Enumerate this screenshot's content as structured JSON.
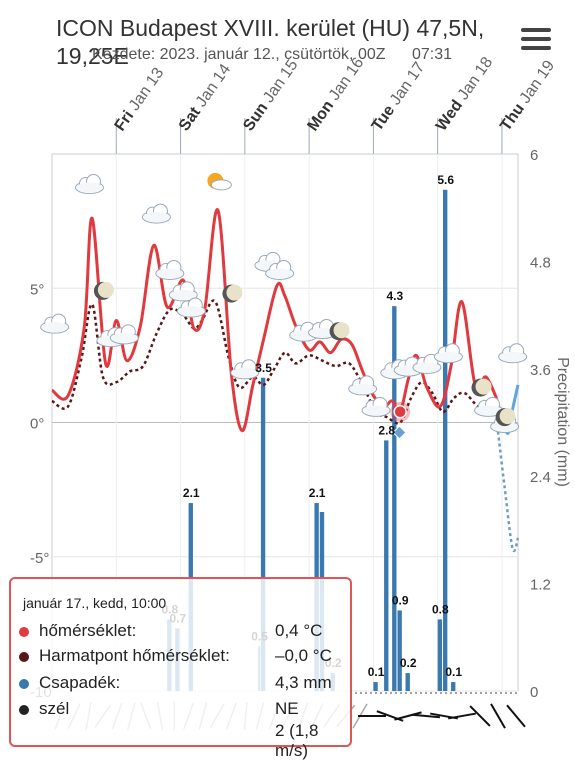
{
  "header": {
    "title": "ICON Budapest XVIII. kerület (HU) 47,5N, 19,25E",
    "subtitle": "Kezdete: 2023. január 12., csütörtök, 00Z",
    "time": "07:31"
  },
  "chart_data": {
    "type": "line",
    "x_days": [
      {
        "weekday": "Fri",
        "date": "Jan 13"
      },
      {
        "weekday": "Sat",
        "date": "Jan 14"
      },
      {
        "weekday": "Sun",
        "date": "Jan 15"
      },
      {
        "weekday": "Mon",
        "date": "Jan 16"
      },
      {
        "weekday": "Tue",
        "date": "Jan 17"
      },
      {
        "weekday": "Wed",
        "date": "Jan 18"
      },
      {
        "weekday": "Thu",
        "date": "Jan 19"
      }
    ],
    "x_range": [
      "2023-01-12T00:00",
      "2023-01-19T06:00"
    ],
    "y_left": {
      "range": [
        -10,
        10
      ],
      "ticks": [
        "5°",
        "0°",
        "-5°",
        "-10"
      ],
      "tick_values": [
        5,
        0,
        -5,
        -10
      ]
    },
    "y_right": {
      "label": "Precipitation (mm)",
      "range": [
        0,
        6
      ],
      "ticks": [
        "6",
        "4.8",
        "3.6",
        "2.4",
        "1.2",
        "0"
      ],
      "tick_values": [
        6,
        4.8,
        3.6,
        2.4,
        1.2,
        0
      ]
    },
    "temperature": {
      "color": "#e0393e",
      "points": [
        [
          "2023-01-12T00:00",
          1.2
        ],
        [
          "2023-01-12T06:00",
          1.0
        ],
        [
          "2023-01-12T12:00",
          3.5
        ],
        [
          "2023-01-12T15:00",
          7.6
        ],
        [
          "2023-01-12T20:00",
          2.2
        ],
        [
          "2023-01-13T00:00",
          3.8
        ],
        [
          "2023-01-13T04:00",
          2.3
        ],
        [
          "2023-01-13T09:00",
          3.6
        ],
        [
          "2023-01-13T14:00",
          6.6
        ],
        [
          "2023-01-13T19:00",
          4.3
        ],
        [
          "2023-01-14T01:00",
          5.3
        ],
        [
          "2023-01-14T05:00",
          3.5
        ],
        [
          "2023-01-14T09:00",
          4.2
        ],
        [
          "2023-01-14T14:00",
          7.9
        ],
        [
          "2023-01-14T19:00",
          1.8
        ],
        [
          "2023-01-14T23:00",
          -0.3
        ],
        [
          "2023-01-15T03:00",
          1.4
        ],
        [
          "2023-01-15T07:00",
          3.1
        ],
        [
          "2023-01-15T12:00",
          5.1
        ],
        [
          "2023-01-15T15:00",
          4.7
        ],
        [
          "2023-01-15T19:00",
          3.6
        ],
        [
          "2023-01-16T00:00",
          2.7
        ],
        [
          "2023-01-16T04:00",
          3.0
        ],
        [
          "2023-01-16T08:00",
          2.6
        ],
        [
          "2023-01-16T12:00",
          3.1
        ],
        [
          "2023-01-16T16:00",
          2.9
        ],
        [
          "2023-01-16T20:00",
          1.9
        ],
        [
          "2023-01-17T00:00",
          1.0
        ],
        [
          "2023-01-17T04:00",
          0.6
        ],
        [
          "2023-01-17T07:00",
          0.8
        ],
        [
          "2023-01-17T10:00",
          0.4
        ],
        [
          "2023-01-17T13:00",
          1.6
        ],
        [
          "2023-01-17T16:00",
          2.5
        ],
        [
          "2023-01-17T20:00",
          1.3
        ],
        [
          "2023-01-18T01:00",
          0.6
        ],
        [
          "2023-01-18T05:00",
          2.1
        ],
        [
          "2023-01-18T09:00",
          4.5
        ],
        [
          "2023-01-18T14:00",
          1.4
        ],
        [
          "2023-01-18T18:00",
          1.7
        ],
        [
          "2023-01-18T22:00",
          0.9
        ]
      ],
      "forecast_points": [
        [
          "2023-01-18T22:00",
          0.9
        ],
        [
          "2023-01-19T02:00",
          -0.4
        ],
        [
          "2023-01-19T04:00",
          0.5
        ],
        [
          "2023-01-19T06:00",
          1.4
        ]
      ]
    },
    "dewpoint": {
      "color": "#5a1616",
      "points": [
        [
          "2023-01-12T00:00",
          0.8
        ],
        [
          "2023-01-12T06:00",
          0.6
        ],
        [
          "2023-01-12T11:00",
          2.4
        ],
        [
          "2023-01-12T15:00",
          4.4
        ],
        [
          "2023-01-12T19:00",
          1.7
        ],
        [
          "2023-01-13T00:00",
          1.5
        ],
        [
          "2023-01-13T05:00",
          1.9
        ],
        [
          "2023-01-13T10:00",
          2.1
        ],
        [
          "2023-01-13T15:00",
          3.3
        ],
        [
          "2023-01-13T20:00",
          4.2
        ],
        [
          "2023-01-14T01:00",
          4.0
        ],
        [
          "2023-01-14T05:00",
          3.5
        ],
        [
          "2023-01-14T08:00",
          3.8
        ],
        [
          "2023-01-14T13:00",
          4.5
        ],
        [
          "2023-01-14T18:00",
          2.4
        ],
        [
          "2023-01-14T22:00",
          1.3
        ],
        [
          "2023-01-15T03:00",
          1.7
        ],
        [
          "2023-01-15T07:00",
          1.4
        ],
        [
          "2023-01-15T11:00",
          2.0
        ],
        [
          "2023-01-15T15:00",
          2.6
        ],
        [
          "2023-01-15T19:00",
          2.2
        ],
        [
          "2023-01-16T00:00",
          2.5
        ],
        [
          "2023-01-16T05:00",
          2.3
        ],
        [
          "2023-01-16T10:00",
          2.1
        ],
        [
          "2023-01-16T15:00",
          2.2
        ],
        [
          "2023-01-16T20:00",
          1.4
        ],
        [
          "2023-01-17T01:00",
          0.4
        ],
        [
          "2023-01-17T05:00",
          0.2
        ],
        [
          "2023-01-17T10:00",
          0.0
        ],
        [
          "2023-01-17T14:00",
          0.9
        ],
        [
          "2023-01-17T18:00",
          1.5
        ],
        [
          "2023-01-17T22:00",
          1.1
        ],
        [
          "2023-01-18T02:00",
          0.4
        ],
        [
          "2023-01-18T06:00",
          0.9
        ],
        [
          "2023-01-18T10:00",
          1.1
        ],
        [
          "2023-01-18T15:00",
          0.6
        ],
        [
          "2023-01-18T20:00",
          0.4
        ],
        [
          "2023-01-18T22:00",
          0.1
        ]
      ],
      "forecast_points": [
        [
          "2023-01-18T22:00",
          0.1
        ],
        [
          "2023-01-19T01:00",
          -2.4
        ],
        [
          "2023-01-19T04:00",
          -4.7
        ],
        [
          "2023-01-19T06:00",
          -4.3
        ]
      ]
    },
    "precipitation": {
      "color": "#3a78b0",
      "bars": [
        {
          "start": "2023-01-13T19:00",
          "end": "2023-01-13T21:00",
          "value": 0.8,
          "label": "0.8"
        },
        {
          "start": "2023-01-13T22:00",
          "end": "2023-01-14T00:00",
          "value": 0.7,
          "label": "0.7"
        },
        {
          "start": "2023-01-14T03:00",
          "end": "2023-01-14T05:00",
          "value": 2.1,
          "label": "2.1"
        },
        {
          "start": "2023-01-15T06:00",
          "end": "2023-01-15T08:00",
          "value": 3.5,
          "label": "3.5"
        },
        {
          "start": "2023-01-15T05:00",
          "end": "2023-01-15T06:00",
          "value": 0.5,
          "label": "0.5"
        },
        {
          "start": "2023-01-16T02:00",
          "end": "2023-01-16T04:00",
          "value": 2.1,
          "label": "2.1"
        },
        {
          "start": "2023-01-16T04:00",
          "end": "2023-01-16T06:00",
          "value": 2.0,
          "label": ""
        },
        {
          "start": "2023-01-16T08:00",
          "end": "2023-01-16T10:00",
          "value": 0.2,
          "label": "0.2"
        },
        {
          "start": "2023-01-17T00:00",
          "end": "2023-01-17T02:00",
          "value": 0.1,
          "label": "0.1"
        },
        {
          "start": "2023-01-17T04:00",
          "end": "2023-01-17T06:00",
          "value": 2.8,
          "label": "2.8"
        },
        {
          "start": "2023-01-17T07:00",
          "end": "2023-01-17T09:00",
          "value": 4.3,
          "label": "4.3"
        },
        {
          "start": "2023-01-17T09:00",
          "end": "2023-01-17T11:00",
          "value": 0.9,
          "label": "0.9"
        },
        {
          "start": "2023-01-17T12:00",
          "end": "2023-01-17T14:00",
          "value": 0.2,
          "label": "0.2"
        },
        {
          "start": "2023-01-18T00:00",
          "end": "2023-01-18T02:00",
          "value": 0.8,
          "label": "0.8"
        },
        {
          "start": "2023-01-18T02:00",
          "end": "2023-01-18T04:00",
          "value": 5.6,
          "label": "5.6"
        },
        {
          "start": "2023-01-18T05:00",
          "end": "2023-01-18T07:00",
          "value": 0.1,
          "label": "0.1"
        }
      ]
    },
    "hover_time": "2023-01-17T10:00",
    "wind_arrows_deg": [
      200,
      205,
      190,
      215,
      200,
      195,
      160,
      170,
      180,
      200,
      195,
      210,
      200,
      185,
      195,
      200,
      210,
      200,
      205,
      215,
      220,
      210
    ],
    "wind_arrows_bold_deg": [
      90,
      110,
      75,
      95,
      100,
      80,
      135,
      150,
      140
    ]
  },
  "tooltip": {
    "header": "január 17., kedd, 10:00",
    "rows": [
      {
        "label": "hőmérséklet:",
        "value": "0,4 °C",
        "color": "#e0393e"
      },
      {
        "label": "Harmatpont hőmérséklet:",
        "value": "–0,0 °C",
        "color": "#5a1616"
      },
      {
        "label": "Csapadék:",
        "value": "4,3 mm",
        "color": "#3a78b0"
      },
      {
        "label": "szél",
        "value": "NE",
        "value2": "2 (1,8 m/s)",
        "color": "#222"
      }
    ]
  }
}
